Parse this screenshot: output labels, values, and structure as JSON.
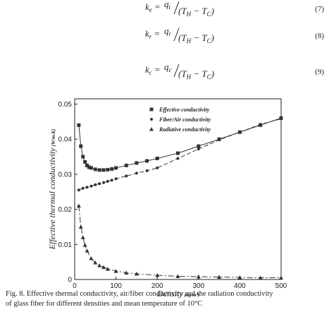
{
  "equations": [
    {
      "lhs": "k",
      "lhs_sub": "e",
      "sign": "=",
      "num": "q",
      "num_sub": "t",
      "denom": [
        "(T",
        "H",
        " − T",
        "C",
        ")"
      ],
      "number": "(7)"
    },
    {
      "lhs": "k",
      "lhs_sub": "r",
      "sign": "=",
      "num": "q",
      "num_sub": "r",
      "denom": [
        "(T",
        "H",
        " − T",
        "C",
        ")"
      ],
      "number": "(8)"
    },
    {
      "lhs": "k",
      "lhs_sub": "c",
      "sign": "=",
      "num": "q",
      "num_sub": "c",
      "denom": [
        "(T",
        "H",
        " − T",
        "C",
        ")"
      ],
      "number": "(9)"
    }
  ],
  "chart_data": {
    "type": "scatter",
    "xlabel": "Density",
    "xlabel_unit": "(kg/m³)",
    "ylabel": "Effective thermal conductivity",
    "ylabel_unit": "(W/m.K)",
    "xlim": [
      0,
      500
    ],
    "ylim": [
      0,
      0.0515
    ],
    "xticks": [
      0,
      100,
      200,
      300,
      400,
      500
    ],
    "yticks": [
      0,
      0.01,
      0.02,
      0.03,
      0.04,
      0.05
    ],
    "series": [
      {
        "name": "Effective conductivity",
        "marker": "square",
        "line": "solid",
        "color": "#333333",
        "x": [
          10,
          15,
          20,
          25,
          30,
          35,
          40,
          50,
          60,
          70,
          80,
          90,
          100,
          125,
          150,
          175,
          200,
          250,
          300,
          350,
          400,
          450,
          500
        ],
        "values": [
          0.044,
          0.038,
          0.035,
          0.0335,
          0.0325,
          0.032,
          0.0318,
          0.0314,
          0.0312,
          0.0312,
          0.0313,
          0.0315,
          0.0318,
          0.0325,
          0.0332,
          0.0338,
          0.0345,
          0.036,
          0.038,
          0.04,
          0.042,
          0.044,
          0.046
        ]
      },
      {
        "name": "Fiber/Air conductivity",
        "marker": "circle",
        "line": "dashed",
        "color": "#333333",
        "x": [
          10,
          20,
          30,
          40,
          50,
          60,
          70,
          80,
          90,
          100,
          125,
          150,
          175,
          200,
          250,
          300,
          350,
          400,
          450,
          500
        ],
        "values": [
          0.0255,
          0.026,
          0.0263,
          0.0266,
          0.027,
          0.0273,
          0.0276,
          0.028,
          0.0283,
          0.0287,
          0.0295,
          0.0303,
          0.031,
          0.0318,
          0.0345,
          0.0372,
          0.0398,
          0.042,
          0.0442,
          0.0458
        ]
      },
      {
        "name": "Radiative conductivity",
        "marker": "triangle",
        "line": "dashdot",
        "color": "#333333",
        "x": [
          10,
          15,
          20,
          25,
          30,
          40,
          50,
          60,
          70,
          80,
          100,
          125,
          150,
          200,
          250,
          300,
          350,
          400,
          450,
          500
        ],
        "values": [
          0.021,
          0.015,
          0.012,
          0.0098,
          0.0082,
          0.006,
          0.0048,
          0.004,
          0.0035,
          0.003,
          0.0024,
          0.0019,
          0.0016,
          0.0012,
          0.0009,
          0.0008,
          0.0007,
          0.0006,
          0.0005,
          0.0005
        ]
      }
    ]
  },
  "caption": [
    "Fig. 8. Effective thermal conductivity, air/fiber conductivity and the radiation conductivity",
    "of glass fiber for different densities and mean temperature of 10°C"
  ]
}
